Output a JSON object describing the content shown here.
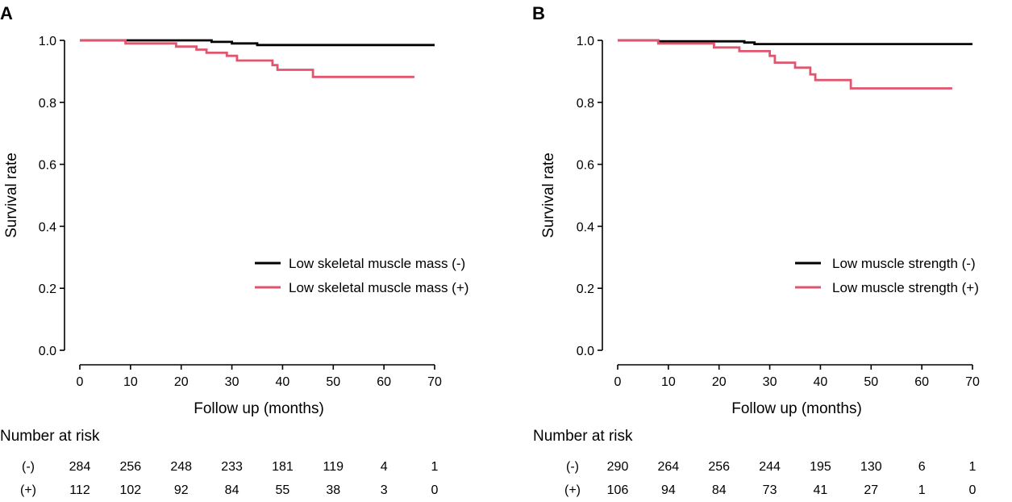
{
  "chart_data": [
    {
      "type": "line",
      "panel": "A",
      "xlabel": "Follow up (months)",
      "ylabel": "Survival rate",
      "xlim": [
        0,
        70
      ],
      "ylim": [
        0.0,
        1.0
      ],
      "xticks": [
        0,
        10,
        20,
        30,
        40,
        50,
        60,
        70
      ],
      "yticks": [
        "0.0",
        "0.2",
        "0.4",
        "0.6",
        "0.8",
        "1.0"
      ],
      "legend_position": "center-right",
      "series": [
        {
          "name": "Low skeletal muscle mass (-)",
          "color": "#000000",
          "points": [
            [
              0,
              1.0
            ],
            [
              26,
              1.0
            ],
            [
              26,
              0.995
            ],
            [
              30,
              0.995
            ],
            [
              30,
              0.99
            ],
            [
              35,
              0.99
            ],
            [
              35,
              0.985
            ],
            [
              70,
              0.985
            ]
          ]
        },
        {
          "name": "Low skeletal muscle mass (+)",
          "color": "#e0566f",
          "points": [
            [
              0,
              1.0
            ],
            [
              9,
              1.0
            ],
            [
              9,
              0.99
            ],
            [
              19,
              0.99
            ],
            [
              19,
              0.98
            ],
            [
              23,
              0.98
            ],
            [
              23,
              0.97
            ],
            [
              25,
              0.97
            ],
            [
              25,
              0.96
            ],
            [
              29,
              0.96
            ],
            [
              29,
              0.95
            ],
            [
              31,
              0.95
            ],
            [
              31,
              0.935
            ],
            [
              38,
              0.935
            ],
            [
              38,
              0.92
            ],
            [
              39,
              0.92
            ],
            [
              39,
              0.905
            ],
            [
              46,
              0.905
            ],
            [
              46,
              0.882
            ],
            [
              66,
              0.882
            ]
          ]
        }
      ],
      "risk_table": {
        "title": "Number at risk",
        "rows": [
          {
            "label": "(-)",
            "values": [
              "284",
              "256",
              "248",
              "233",
              "181",
              "119",
              "4",
              "1"
            ]
          },
          {
            "label": "(+)",
            "values": [
              "112",
              "102",
              "92",
              "84",
              "55",
              "38",
              "3",
              "0"
            ]
          }
        ]
      }
    },
    {
      "type": "line",
      "panel": "B",
      "xlabel": "Follow up (months)",
      "ylabel": "Survival rate",
      "xlim": [
        0,
        70
      ],
      "ylim": [
        0.0,
        1.0
      ],
      "xticks": [
        0,
        10,
        20,
        30,
        40,
        50,
        60,
        70
      ],
      "yticks": [
        "0.0",
        "0.2",
        "0.4",
        "0.6",
        "0.8",
        "1.0"
      ],
      "legend_position": "center-right",
      "series": [
        {
          "name": "Low muscle strength (-)",
          "color": "#000000",
          "points": [
            [
              0,
              1.0
            ],
            [
              8,
              1.0
            ],
            [
              8,
              0.997
            ],
            [
              25,
              0.997
            ],
            [
              25,
              0.993
            ],
            [
              27,
              0.993
            ],
            [
              27,
              0.988
            ],
            [
              70,
              0.988
            ]
          ]
        },
        {
          "name": "Low muscle strength (+)",
          "color": "#e0566f",
          "points": [
            [
              0,
              1.0
            ],
            [
              8,
              1.0
            ],
            [
              8,
              0.99
            ],
            [
              19,
              0.99
            ],
            [
              19,
              0.977
            ],
            [
              24,
              0.977
            ],
            [
              24,
              0.965
            ],
            [
              30,
              0.965
            ],
            [
              30,
              0.95
            ],
            [
              31,
              0.95
            ],
            [
              31,
              0.928
            ],
            [
              35,
              0.928
            ],
            [
              35,
              0.912
            ],
            [
              38,
              0.912
            ],
            [
              38,
              0.89
            ],
            [
              39,
              0.89
            ],
            [
              39,
              0.872
            ],
            [
              46,
              0.872
            ],
            [
              46,
              0.845
            ],
            [
              66,
              0.845
            ]
          ]
        }
      ],
      "risk_table": {
        "title": "Number at risk",
        "rows": [
          {
            "label": "(-)",
            "values": [
              "290",
              "264",
              "256",
              "244",
              "195",
              "130",
              "6",
              "1"
            ]
          },
          {
            "label": "(+)",
            "values": [
              "106",
              "94",
              "84",
              "73",
              "41",
              "27",
              "1",
              "0"
            ]
          }
        ]
      }
    }
  ]
}
